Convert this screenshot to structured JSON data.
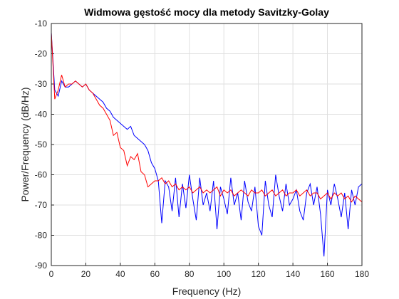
{
  "chart_data": {
    "type": "line",
    "title": "Widmowa gęstość mocy dla metody Savitzky-Golay",
    "x_label": "Frequency (Hz)",
    "y_label": "Power/Frequency (dB/Hz)",
    "x": [
      0,
      2,
      4,
      6,
      8,
      10,
      12,
      14,
      16,
      18,
      20,
      22,
      24,
      26,
      28,
      30,
      32,
      34,
      36,
      38,
      40,
      42,
      44,
      46,
      48,
      50,
      52,
      54,
      56,
      58,
      60,
      62,
      64,
      66,
      68,
      70,
      72,
      74,
      76,
      78,
      80,
      82,
      84,
      86,
      88,
      90,
      92,
      94,
      96,
      98,
      100,
      102,
      104,
      106,
      108,
      110,
      112,
      114,
      116,
      118,
      120,
      122,
      124,
      126,
      128,
      130,
      132,
      134,
      136,
      138,
      140,
      142,
      144,
      146,
      148,
      150,
      152,
      154,
      156,
      158,
      160,
      162,
      164,
      166,
      168,
      170,
      172,
      174,
      176,
      178,
      180
    ],
    "series": [
      {
        "color": "#0000ff",
        "values": [
          -13,
          -32,
          -34,
          -29,
          -31,
          -31,
          -30,
          -29,
          -30,
          -31,
          -30,
          -32,
          -33,
          -34,
          -35,
          -36,
          -38,
          -39,
          -41,
          -42,
          -43,
          -44,
          -45,
          -44,
          -47,
          -48,
          -49,
          -50,
          -52,
          -56,
          -58,
          -62,
          -76,
          -62,
          -64,
          -72,
          -61,
          -74,
          -63,
          -71,
          -60,
          -68,
          -75,
          -61,
          -70,
          -66,
          -72,
          -62,
          -78,
          -64,
          -68,
          -73,
          -61,
          -70,
          -66,
          -75,
          -62,
          -69,
          -72,
          -64,
          -77,
          -80,
          -62,
          -70,
          -74,
          -60,
          -67,
          -72,
          -63,
          -70,
          -68,
          -65,
          -72,
          -75,
          -66,
          -63,
          -70,
          -64,
          -73,
          -87,
          -65,
          -70,
          -63,
          -68,
          -74,
          -66,
          -78,
          -65,
          -70,
          -64,
          -63
        ]
      },
      {
        "color": "#ff0000",
        "values": [
          -13,
          -35,
          -32,
          -27,
          -31,
          -30,
          -30,
          -29,
          -30,
          -31,
          -30,
          -32,
          -33,
          -35,
          -37,
          -38,
          -40,
          -42,
          -47,
          -46,
          -51,
          -52,
          -57,
          -54,
          -55,
          -53,
          -59,
          -60,
          -64,
          -63,
          -62,
          -62,
          -61,
          -63,
          -62,
          -64,
          -63,
          -65,
          -64,
          -65,
          -64,
          -66,
          -65,
          -64,
          -66,
          -65,
          -66,
          -65,
          -64,
          -67,
          -65,
          -66,
          -65,
          -67,
          -66,
          -65,
          -66,
          -67,
          -65,
          -66,
          -66,
          -65,
          -67,
          -66,
          -65,
          -67,
          -66,
          -65,
          -67,
          -66,
          -66,
          -65,
          -67,
          -66,
          -65,
          -67,
          -66,
          -66,
          -68,
          -67,
          -66,
          -68,
          -66,
          -67,
          -66,
          -68,
          -67,
          -69,
          -67,
          -68,
          -69
        ]
      }
    ],
    "xlim": [
      0,
      180
    ],
    "xticks": [
      0,
      20,
      40,
      60,
      80,
      100,
      120,
      140,
      160,
      180
    ],
    "ylim": [
      -90,
      -10
    ],
    "yticks": [
      -90,
      -80,
      -70,
      -60,
      -50,
      -40,
      -30,
      -20,
      -10
    ],
    "grid": true
  }
}
